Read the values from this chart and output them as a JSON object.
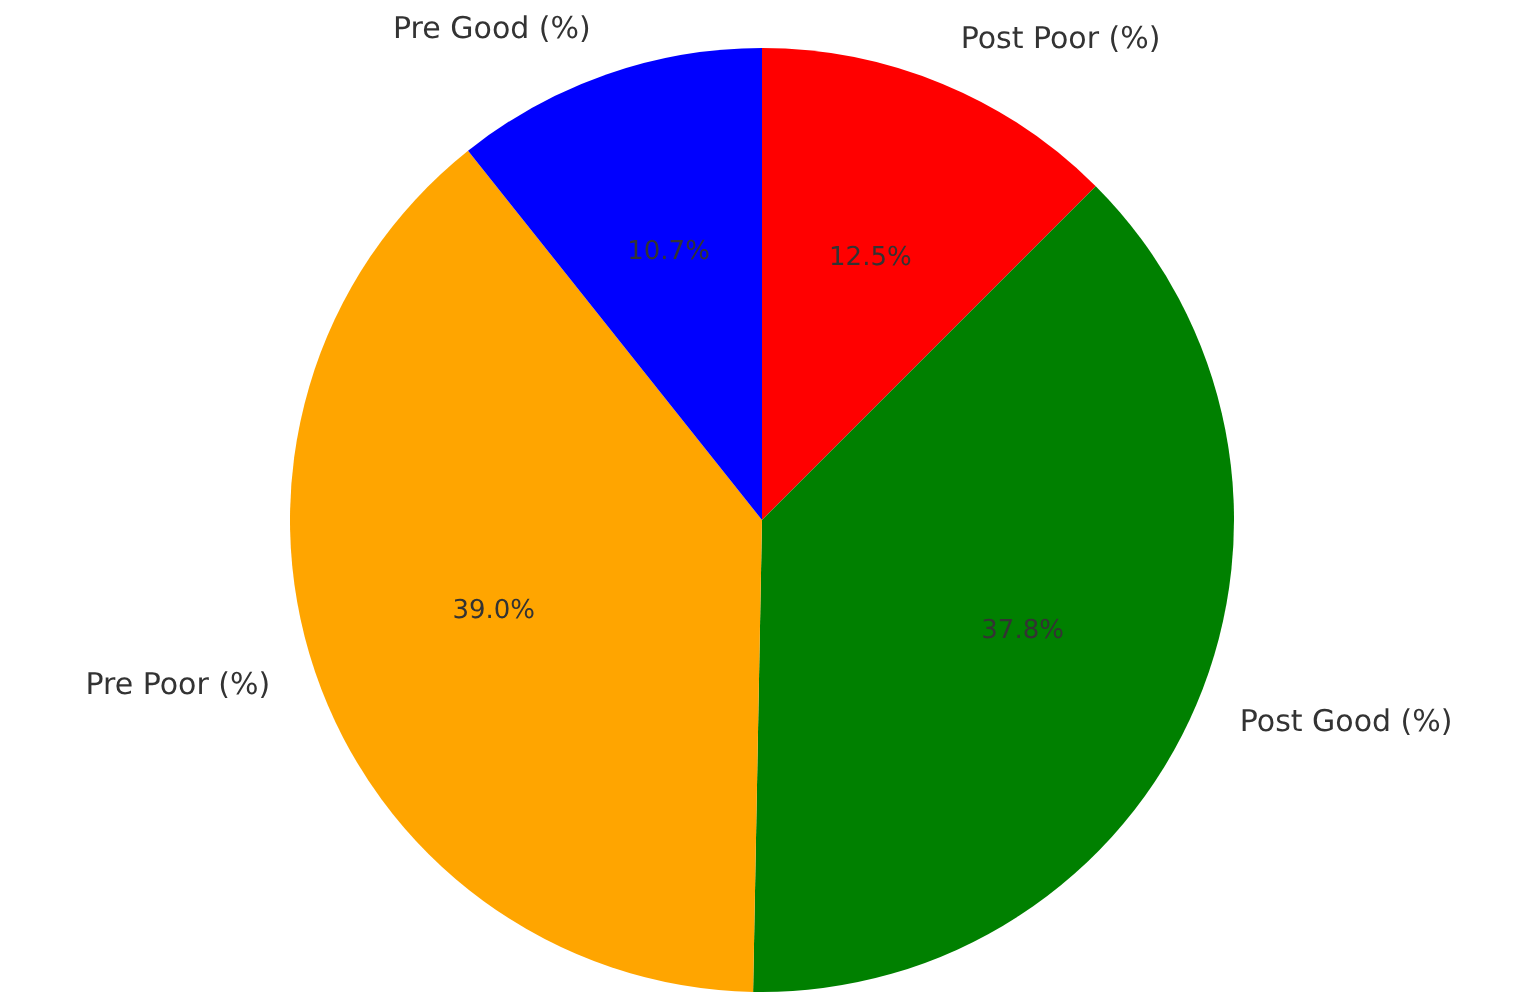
{
  "chart_data": {
    "type": "pie",
    "categories": [
      "Post Poor (%)",
      "Post Good (%)",
      "Pre Poor (%)",
      "Pre Good (%)"
    ],
    "values": [
      12.5,
      37.8,
      39.0,
      10.7
    ],
    "colors": [
      "#ff0000",
      "#008000",
      "#ffa500",
      "#0000ff"
    ],
    "value_labels": [
      "12.5%",
      "37.8%",
      "39.0%",
      "10.7%"
    ],
    "legend": false
  }
}
